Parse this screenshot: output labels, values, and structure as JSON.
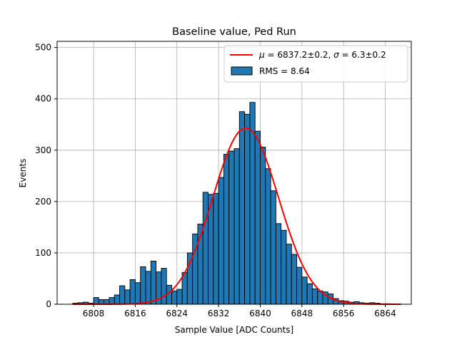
{
  "chart_data": {
    "type": "bar",
    "title": "Baseline value, Ped Run",
    "xlabel": "Sample Value [ADC Counts]",
    "ylabel": "Events",
    "xlim": [
      6801,
      6869
    ],
    "ylim": [
      0,
      512
    ],
    "xticks": [
      6808,
      6816,
      6824,
      6832,
      6840,
      6848,
      6856,
      6864
    ],
    "yticks": [
      0,
      100,
      200,
      300,
      400,
      500
    ],
    "grid": true,
    "legend_position": "top-right",
    "bin_width": 1,
    "bin_start": 6804,
    "histogram": {
      "name": "RMS = 8.64",
      "color": "#1f77b4",
      "edgecolor": "#000000",
      "counts": [
        2,
        3,
        4,
        2,
        13,
        9,
        9,
        13,
        18,
        36,
        28,
        48,
        42,
        73,
        64,
        84,
        63,
        70,
        37,
        26,
        29,
        62,
        100,
        137,
        156,
        218,
        214,
        216,
        247,
        292,
        298,
        303,
        375,
        370,
        393,
        337,
        306,
        264,
        221,
        157,
        144,
        117,
        97,
        72,
        53,
        40,
        30,
        26,
        24,
        20,
        11,
        7,
        6,
        4,
        5,
        3,
        2,
        3,
        2,
        1,
        1,
        0,
        0
      ]
    },
    "fit": {
      "name_mu_symbol": "μ",
      "name_mu_value": " = 6837.2±0.2, ",
      "name_sigma_symbol": "σ",
      "name_sigma_value": " = 6.3±0.2",
      "color": "#ff0000",
      "mu": 6837.2,
      "sigma": 6.3,
      "amplitude": 343,
      "x_range": [
        6804,
        6867
      ]
    }
  }
}
